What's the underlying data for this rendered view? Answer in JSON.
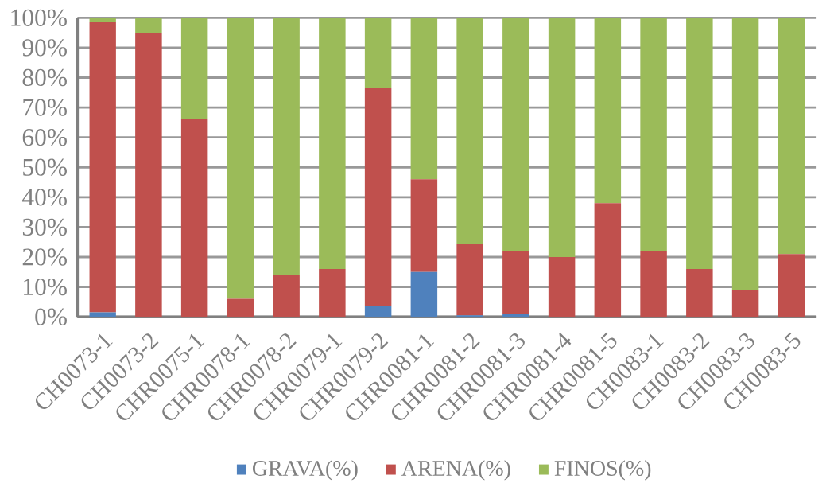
{
  "chart_data": {
    "type": "bar",
    "stacked": true,
    "categories": [
      "CH0073-1",
      "CH0073-2",
      "CHR0075-1",
      "CHR0078-1",
      "CHR0078-2",
      "CHR0079-1",
      "CHR0079-2",
      "CHR0081-1",
      "CHR0081-2",
      "CHR0081-3",
      "CHR0081-4",
      "CHR0081-5",
      "CH0083-1",
      "CH0083-2",
      "CH0083-3",
      "CH0083-5"
    ],
    "series": [
      {
        "name": "GRAVA(%)",
        "color": "#4f81bd",
        "values": [
          1.5,
          0,
          0,
          0,
          0,
          0,
          3.5,
          15,
          0.5,
          1,
          0,
          0,
          0,
          0,
          0,
          0
        ]
      },
      {
        "name": "ARENA(%)",
        "color": "#c0504d",
        "values": [
          97,
          95,
          66,
          6,
          14,
          16,
          73,
          31,
          24,
          21,
          20,
          38,
          22,
          16,
          9,
          21
        ]
      },
      {
        "name": "FINOS(%)",
        "color": "#9bbb59",
        "values": [
          1.5,
          5,
          34,
          94,
          86,
          84,
          23.5,
          54,
          75.5,
          78,
          80,
          62,
          78,
          84,
          91,
          79
        ]
      }
    ],
    "ylim": [
      0,
      100
    ],
    "yticks": [
      {
        "value": 0,
        "label": "0%"
      },
      {
        "value": 10,
        "label": "10%"
      },
      {
        "value": 20,
        "label": "20%"
      },
      {
        "value": 30,
        "label": "30%"
      },
      {
        "value": 40,
        "label": "40%"
      },
      {
        "value": 50,
        "label": "50%"
      },
      {
        "value": 60,
        "label": "60%"
      },
      {
        "value": 70,
        "label": "70%"
      },
      {
        "value": 80,
        "label": "80%"
      },
      {
        "value": 90,
        "label": "90%"
      },
      {
        "value": 100,
        "label": "100%"
      }
    ],
    "grid": "y",
    "legend": "bottom"
  }
}
